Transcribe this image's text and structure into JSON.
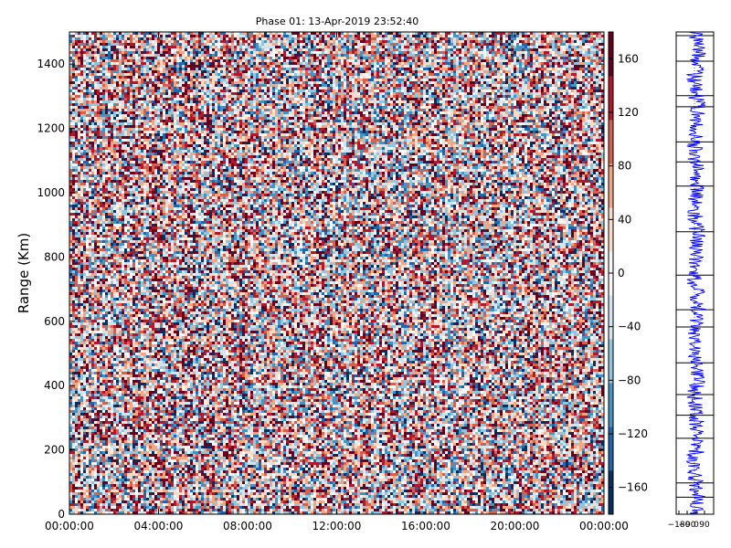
{
  "chart_data": [
    {
      "type": "heatmap",
      "title": "Phase 01: 13-Apr-2019 23:52:40",
      "xlabel": "",
      "ylabel": "Range (Km)",
      "xlim": [
        "00:00:00",
        "00:00:00"
      ],
      "ylim": [
        0,
        1500
      ],
      "x_ticks": [
        "00:00:00",
        "04:00:00",
        "08:00:00",
        "12:00:00",
        "16:00:00",
        "20:00:00",
        "00:00:00"
      ],
      "y_ticks": [
        0,
        200,
        400,
        600,
        800,
        1000,
        1200,
        1400
      ],
      "value_range": [
        -180,
        180
      ],
      "colormap": [
        "#053061",
        "#2166ac",
        "#4393c3",
        "#92c5de",
        "#d1e5f0",
        "#f7f7f7",
        "#fddbc7",
        "#f4a582",
        "#d6604d",
        "#b2182b",
        "#67001f"
      ],
      "colorbar_ticks": [
        160,
        120,
        80,
        40,
        0,
        -40,
        -80,
        -120,
        -160
      ],
      "grid": false
    },
    {
      "type": "line",
      "title": "",
      "ylim": [
        0,
        1500
      ],
      "x_ticks": [
        "−180",
        "−90",
        "0",
        "90"
      ],
      "series_color": "#0000ff",
      "grid": true
    }
  ]
}
